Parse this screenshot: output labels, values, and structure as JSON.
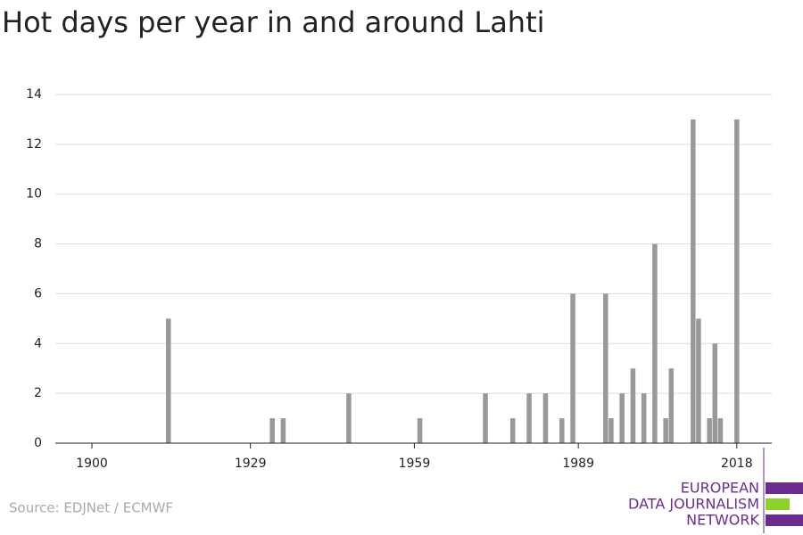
{
  "chart_data": {
    "type": "bar",
    "title": "Hot days per year in and around Lahti",
    "source": "Source: EDJNet / ECMWF",
    "logo": [
      "EUROPEAN",
      "DATA JOURNALISM",
      "NETWORK"
    ],
    "x": [
      1914,
      1933,
      1935,
      1947,
      1960,
      1972,
      1977,
      1980,
      1983,
      1986,
      1988,
      1994,
      1995,
      1997,
      1999,
      2001,
      2003,
      2005,
      2006,
      2010,
      2011,
      2013,
      2014,
      2015,
      2018
    ],
    "values": [
      5,
      1,
      1,
      2,
      1,
      2,
      1,
      2,
      2,
      1,
      6,
      6,
      1,
      2,
      3,
      2,
      8,
      1,
      3,
      13,
      5,
      1,
      4,
      1,
      13
    ],
    "color": "#999999",
    "xlim": [
      1893.3,
      2024.4
    ],
    "xticks": [
      1900,
      1929,
      1959,
      1989,
      2018
    ],
    "ylim": [
      0,
      14
    ],
    "yticks": [
      0,
      2,
      4,
      6,
      8,
      10,
      12,
      14
    ],
    "grid": true
  }
}
